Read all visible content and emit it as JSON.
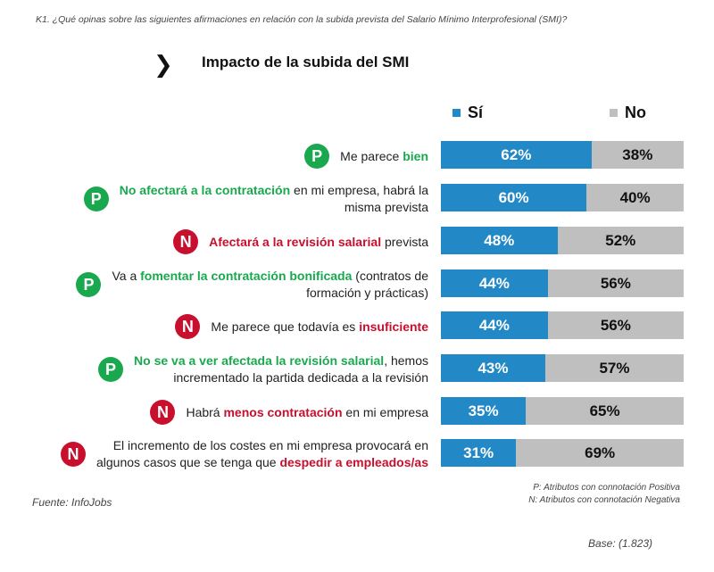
{
  "question": "K1. ¿Qué opinas sobre las siguientes afirmaciones en relación con la subida prevista del Salario Mínimo Interprofesional (SMI)?",
  "chevron": "❯",
  "colors": {
    "si": "#2389c6",
    "no": "#bfbfbf",
    "positive": "#1aa84f",
    "negative": "#c8102e"
  },
  "chart_data": {
    "type": "bar",
    "orientation": "horizontal",
    "stacked": true,
    "title": "Impacto de la subida del SMI",
    "legend": [
      "Sí",
      "No"
    ],
    "legend_position": "top-right",
    "categories": [
      "Me parece bien",
      "No afectará a la contratación en mi empresa, habrá la misma prevista",
      "Afectará a la revisión salarial prevista",
      "Va a fomentar la contratación bonificada (contratos de formación y prácticas)",
      "Me parece que todavía es insuficiente",
      "No se va a ver afectada la revisión salarial, hemos incrementado la partida dedicada a la revisión",
      "Habrá menos contratación en mi empresa",
      "El incremento de los costes en mi empresa provocará en algunos casos que se tenga que despedir a empleados/as"
    ],
    "series": [
      {
        "name": "Sí",
        "values": [
          62,
          60,
          48,
          44,
          44,
          43,
          35,
          31
        ]
      },
      {
        "name": "No",
        "values": [
          38,
          40,
          52,
          56,
          56,
          57,
          65,
          69
        ]
      }
    ],
    "unit": "%",
    "xlim": [
      0,
      100
    ]
  },
  "rows": [
    {
      "badge": "P",
      "type": "p",
      "line1": [
        {
          "t": "Me parece ",
          "h": false
        },
        {
          "t": "bien",
          "h": true
        }
      ],
      "line2": []
    },
    {
      "badge": "P",
      "type": "p",
      "line1": [
        {
          "t": "No afectará a la contratación",
          "h": true
        },
        {
          "t": " en mi empresa, habrá la",
          "h": false
        }
      ],
      "line2": [
        {
          "t": "misma prevista",
          "h": false
        }
      ]
    },
    {
      "badge": "N",
      "type": "n",
      "line1": [
        {
          "t": "Afectará a la revisión salarial",
          "h": true
        },
        {
          "t": " prevista",
          "h": false
        }
      ],
      "line2": []
    },
    {
      "badge": "P",
      "type": "p",
      "line1": [
        {
          "t": "Va a ",
          "h": false
        },
        {
          "t": "fomentar la contratación bonificada",
          "h": true
        },
        {
          "t": " (contratos de",
          "h": false
        }
      ],
      "line2": [
        {
          "t": "formación y prácticas)",
          "h": false
        }
      ]
    },
    {
      "badge": "N",
      "type": "n",
      "line1": [
        {
          "t": "Me parece que todavía es ",
          "h": false
        },
        {
          "t": "insuficiente",
          "h": true
        }
      ],
      "line2": []
    },
    {
      "badge": "P",
      "type": "p",
      "line1": [
        {
          "t": "No se va a ver afectada la revisión salarial",
          "h": true
        },
        {
          "t": ", hemos",
          "h": false
        }
      ],
      "line2": [
        {
          "t": "incrementado la partida dedicada a la revisión",
          "h": false
        }
      ]
    },
    {
      "badge": "N",
      "type": "n",
      "line1": [
        {
          "t": "Habrá ",
          "h": false
        },
        {
          "t": "menos contratación",
          "h": true
        },
        {
          "t": " en mi empresa",
          "h": false
        }
      ],
      "line2": []
    },
    {
      "badge": "N",
      "type": "n",
      "line1": [
        {
          "t": "El incremento de los costes en mi empresa provocará en",
          "h": false
        }
      ],
      "line2": [
        {
          "t": "algunos casos que se tenga que ",
          "h": false
        },
        {
          "t": "despedir a empleados/as",
          "h": true
        }
      ]
    }
  ],
  "footer": {
    "note_p": "P: Atributos con connotación Positiva",
    "note_n": "N: Atributos con connotación Negativa",
    "source": "Fuente: InfoJobs",
    "base": "Base: (1.823)"
  }
}
